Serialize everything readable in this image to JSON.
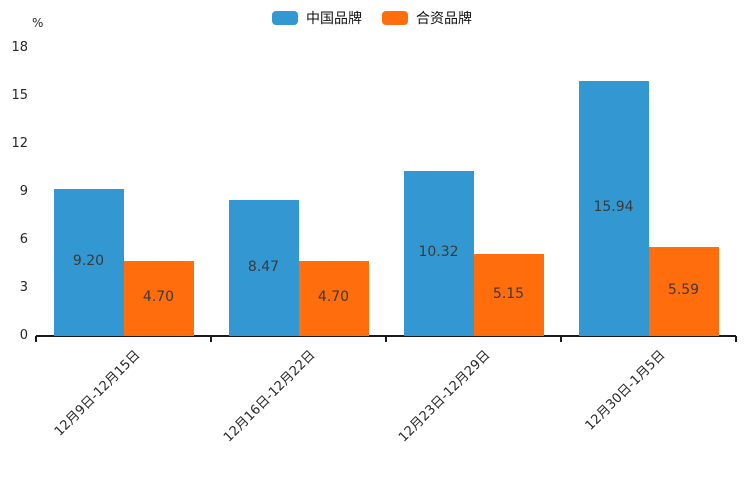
{
  "chart_data": {
    "type": "bar",
    "title": "",
    "xlabel": "",
    "ylabel": "%",
    "categories": [
      "12月9日-12月15日",
      "12月16日-12月22日",
      "12月23日-12月29日",
      "12月30日-1月5日"
    ],
    "series": [
      {
        "name": "中国品牌",
        "color": "#3398d1",
        "values": [
          9.2,
          8.47,
          10.32,
          15.94
        ]
      },
      {
        "name": "合资品牌",
        "color": "#ff6d0d",
        "values": [
          4.7,
          4.7,
          5.15,
          5.59
        ]
      }
    ],
    "value_label_decimals": 2,
    "ylim": [
      0,
      18
    ],
    "yticks": [
      0,
      3,
      6,
      9,
      12,
      15,
      18
    ],
    "legend_position": "top-center",
    "grid": false,
    "axis_color": "#1a1a1a",
    "text_color": "#262626",
    "value_label_color": "#3a3a3a"
  }
}
